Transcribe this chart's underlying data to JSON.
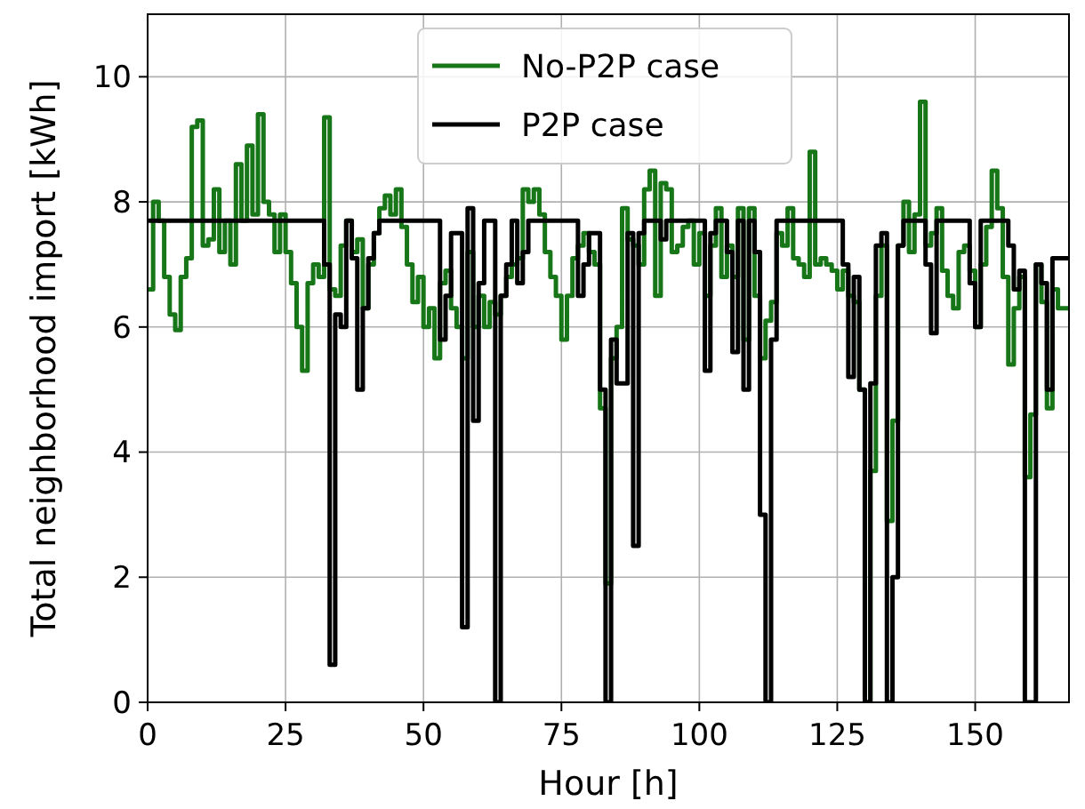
{
  "chart_data": {
    "type": "step",
    "xlabel": "Hour [h]",
    "ylabel": "Total neighborhood import [kWh]",
    "x": [
      0,
      1,
      2,
      3,
      4,
      5,
      6,
      7,
      8,
      9,
      10,
      11,
      12,
      13,
      14,
      15,
      16,
      17,
      18,
      19,
      20,
      21,
      22,
      23,
      24,
      25,
      26,
      27,
      28,
      29,
      30,
      31,
      32,
      33,
      34,
      35,
      36,
      37,
      38,
      39,
      40,
      41,
      42,
      43,
      44,
      45,
      46,
      47,
      48,
      49,
      50,
      51,
      52,
      53,
      54,
      55,
      56,
      57,
      58,
      59,
      60,
      61,
      62,
      63,
      64,
      65,
      66,
      67,
      68,
      69,
      70,
      71,
      72,
      73,
      74,
      75,
      76,
      77,
      78,
      79,
      80,
      81,
      82,
      83,
      84,
      85,
      86,
      87,
      88,
      89,
      90,
      91,
      92,
      93,
      94,
      95,
      96,
      97,
      98,
      99,
      100,
      101,
      102,
      103,
      104,
      105,
      106,
      107,
      108,
      109,
      110,
      111,
      112,
      113,
      114,
      115,
      116,
      117,
      118,
      119,
      120,
      121,
      122,
      123,
      124,
      125,
      126,
      127,
      128,
      129,
      130,
      131,
      132,
      133,
      134,
      135,
      136,
      137,
      138,
      139,
      140,
      141,
      142,
      143,
      144,
      145,
      146,
      147,
      148,
      149,
      150,
      151,
      152,
      153,
      154,
      155,
      156,
      157,
      158,
      159,
      160,
      161,
      162,
      163,
      164,
      165,
      166,
      167
    ],
    "series": [
      {
        "name": "No-P2P case",
        "color": "#177617",
        "values": [
          6.6,
          8.0,
          7.7,
          6.8,
          6.2,
          5.95,
          6.8,
          7.1,
          9.2,
          9.3,
          7.3,
          7.4,
          8.2,
          7.2,
          7.7,
          7.0,
          8.6,
          7.7,
          8.9,
          7.8,
          9.4,
          8.0,
          7.8,
          7.2,
          7.8,
          7.2,
          6.7,
          6.0,
          5.3,
          6.7,
          7.0,
          6.8,
          9.35,
          6.6,
          6.5,
          7.3,
          7.7,
          7.2,
          7.4,
          6.3,
          7.0,
          7.5,
          7.9,
          8.1,
          7.8,
          8.2,
          7.6,
          7.0,
          6.4,
          6.8,
          6.0,
          6.3,
          5.5,
          6.7,
          6.9,
          6.3,
          6.0,
          5.5,
          7.2,
          6.0,
          6.5,
          6.0,
          6.4,
          6.2,
          6.5,
          6.8,
          7.0,
          7.1,
          8.2,
          8.0,
          8.2,
          7.8,
          7.2,
          6.8,
          6.5,
          5.8,
          6.5,
          7.1,
          7.3,
          7.5,
          7.2,
          7.0,
          4.7,
          1.9,
          5.5,
          6.0,
          7.9,
          7.4,
          7.3,
          7.0,
          8.2,
          8.5,
          6.5,
          8.3,
          8.2,
          7.2,
          7.3,
          7.6,
          7.7,
          7.0,
          7.5,
          6.5,
          7.3,
          7.9,
          6.8,
          7.3,
          6.8,
          7.9,
          5.8,
          7.9,
          6.5,
          5.5,
          6.1,
          6.4,
          7.5,
          7.3,
          7.9,
          7.1,
          7.0,
          6.8,
          8.8,
          7.0,
          7.1,
          7.0,
          6.9,
          6.6,
          6.9,
          6.5,
          6.4,
          5.0,
          0,
          3.7,
          6.5,
          7.3,
          2.9,
          4.5,
          7.3,
          8.0,
          7.2,
          7.8,
          9.6,
          7.3,
          7.5,
          7.9,
          6.9,
          6.5,
          6.3,
          7.2,
          7.3,
          6.9,
          6.0,
          7.0,
          7.6,
          8.5,
          7.9,
          6.8,
          5.4,
          6.3,
          6.8,
          3.6,
          4.6,
          7.0,
          6.4,
          4.7,
          6.6,
          6.3,
          6.3,
          6.3
        ]
      },
      {
        "name": "P2P case",
        "color": "#000000",
        "values": [
          7.7,
          7.7,
          7.7,
          7.7,
          7.7,
          7.7,
          7.7,
          7.7,
          7.7,
          7.7,
          7.7,
          7.7,
          7.7,
          7.7,
          7.7,
          7.7,
          7.7,
          7.7,
          7.7,
          7.7,
          7.7,
          7.7,
          7.7,
          7.7,
          7.7,
          7.7,
          7.7,
          7.7,
          7.7,
          7.7,
          7.7,
          7.7,
          7.0,
          0.6,
          6.2,
          6.0,
          7.7,
          7.1,
          5.0,
          6.3,
          7.1,
          7.5,
          7.7,
          7.7,
          7.7,
          7.7,
          7.7,
          7.7,
          7.7,
          7.7,
          7.7,
          7.7,
          7.7,
          5.8,
          6.5,
          7.5,
          7.5,
          1.2,
          7.9,
          4.5,
          6.7,
          7.7,
          7.7,
          0,
          6.5,
          7.0,
          7.7,
          6.7,
          7.2,
          7.7,
          7.7,
          7.7,
          7.7,
          7.7,
          7.7,
          7.7,
          7.7,
          7.7,
          6.5,
          7.0,
          7.5,
          7.5,
          5.0,
          0,
          5.8,
          5.1,
          5.1,
          7.5,
          2.5,
          7.5,
          7.7,
          7.7,
          7.7,
          7.4,
          7.7,
          7.7,
          7.7,
          7.7,
          7.7,
          7.7,
          7.7,
          5.3,
          7.5,
          7.7,
          7.7,
          7.2,
          5.6,
          7.7,
          5.0,
          7.7,
          7.2,
          3.0,
          0,
          5.8,
          7.7,
          7.7,
          7.7,
          7.7,
          7.7,
          7.7,
          7.7,
          7.7,
          7.7,
          7.7,
          7.7,
          7.7,
          7.0,
          5.2,
          6.8,
          5.0,
          0,
          5.1,
          7.3,
          7.5,
          0,
          2.0,
          7.3,
          7.7,
          7.7,
          7.7,
          7.7,
          7.0,
          5.9,
          7.7,
          7.7,
          7.7,
          7.7,
          7.7,
          7.7,
          6.7,
          6.0,
          7.7,
          7.7,
          7.7,
          7.7,
          7.7,
          7.3,
          6.6,
          6.9,
          0,
          0,
          7.0,
          6.7,
          5.0,
          7.1,
          7.1,
          7.1,
          7.1
        ]
      }
    ],
    "xlim": [
      0,
      167
    ],
    "xticks": [
      0,
      25,
      50,
      75,
      100,
      125,
      150
    ],
    "ylim": [
      0,
      11
    ],
    "yticks": [
      0,
      2,
      4,
      6,
      8,
      10
    ],
    "grid": true,
    "legend": "top",
    "line_style": "solid"
  }
}
